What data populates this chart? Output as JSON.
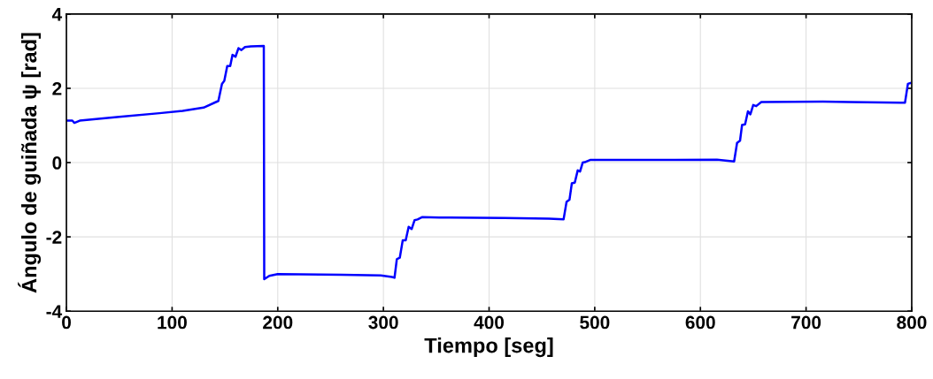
{
  "chart_data": {
    "type": "line",
    "xlabel": "Tiempo [seg]",
    "ylabel": "Ángulo de guiñada ψ [rad]",
    "xlim": [
      0,
      800
    ],
    "ylim": [
      -4,
      4
    ],
    "xticks": [
      0,
      100,
      200,
      300,
      400,
      500,
      600,
      700,
      800
    ],
    "yticks": [
      -4,
      -2,
      0,
      2,
      4
    ],
    "grid": true,
    "marker": "none",
    "line_style": "solid",
    "series": [
      {
        "color": "#0000ff",
        "x": [
          0.8,
          5.6,
          7.5,
          12.6,
          50,
          88,
          110,
          129.8,
          143.8,
          147.2,
          149.4,
          152.2,
          155,
          157.2,
          160,
          162.8,
          165.6,
          169,
          174.5,
          186.8,
          187.2,
          192,
          200,
          260,
          297.4,
          308,
          310.5,
          312.7,
          315.5,
          318.3,
          321.1,
          323.9,
          326.7,
          329.5,
          332.3,
          336.5,
          353,
          414.7,
          456.5,
          470.5,
          473.3,
          476.1,
          478.3,
          481.1,
          483.9,
          486.1,
          488.6,
          491.5,
          495.6,
          557,
          615.7,
          631.9,
          634.7,
          637.5,
          639.4,
          642.3,
          645,
          647.3,
          650,
          652.8,
          657.6,
          716,
          741.4,
          793.6,
          796.4,
          798.6
        ],
        "values": [
          1.13,
          1.13,
          1.07,
          1.13,
          1.23,
          1.33,
          1.39,
          1.48,
          1.66,
          2.12,
          2.2,
          2.6,
          2.6,
          2.9,
          2.85,
          3.08,
          3.03,
          3.11,
          3.13,
          3.14,
          -3.14,
          -3.05,
          -3.0,
          -3.02,
          -3.04,
          -3.08,
          -3.1,
          -2.6,
          -2.56,
          -2.09,
          -2.09,
          -1.73,
          -1.79,
          -1.55,
          -1.53,
          -1.47,
          -1.48,
          -1.49,
          -1.51,
          -1.53,
          -1.06,
          -1.0,
          -0.56,
          -0.54,
          -0.21,
          -0.24,
          0.0,
          0.02,
          0.07,
          0.07,
          0.08,
          0.03,
          0.53,
          0.59,
          1.01,
          1.03,
          1.38,
          1.3,
          1.55,
          1.52,
          1.63,
          1.64,
          1.63,
          1.61,
          2.12,
          2.14
        ]
      }
    ]
  }
}
